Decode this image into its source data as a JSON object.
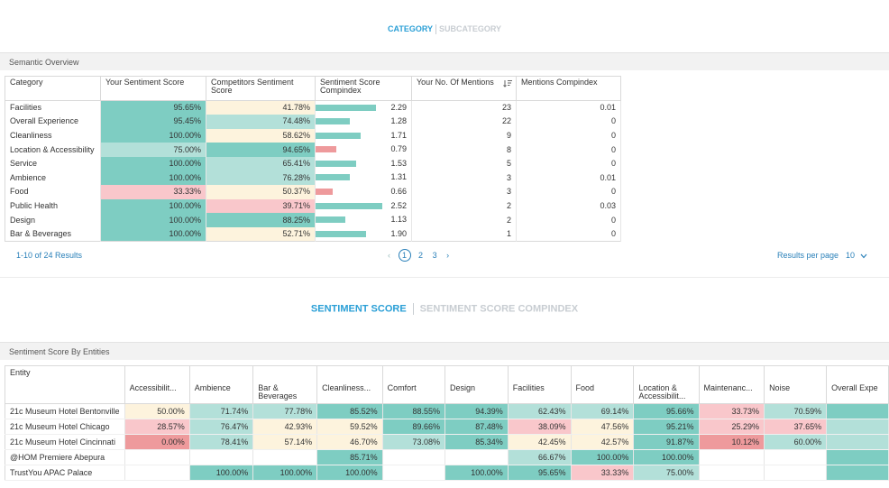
{
  "top_toggle": {
    "active": "CATEGORY",
    "inactive": "SUBCATEGORY"
  },
  "semantic": {
    "title": "Semantic Overview",
    "headers": {
      "category": "Category",
      "your_score": "Your Sentiment Score",
      "comp_score": "Competitors Sentiment Score",
      "compindex": "Sentiment Score Compindex",
      "mentions": "Your No. Of Mentions",
      "mentions_compindex": "Mentions Compindex"
    },
    "rows": [
      {
        "category": "Facilities",
        "your": "95.65%",
        "your_color": "#7ecdc2",
        "comp": "41.78%",
        "comp_color": "#fdf3dd",
        "ci": 2.29,
        "ci_label": "2.29",
        "mentions": "23",
        "mci": "0.01"
      },
      {
        "category": "Overall Experience",
        "your": "95.45%",
        "your_color": "#7ecdc2",
        "comp": "74.48%",
        "comp_color": "#b3e0d9",
        "ci": 1.28,
        "ci_label": "1.28",
        "mentions": "22",
        "mci": "0"
      },
      {
        "category": "Cleanliness",
        "your": "100.00%",
        "your_color": "#7ecdc2",
        "comp": "58.62%",
        "comp_color": "#fdf3dd",
        "ci": 1.71,
        "ci_label": "1.71",
        "mentions": "9",
        "mci": "0"
      },
      {
        "category": "Location & Accessibility",
        "your": "75.00%",
        "your_color": "#b3e0d9",
        "comp": "94.65%",
        "comp_color": "#7ecdc2",
        "ci": 0.79,
        "ci_label": "0.79",
        "mentions": "8",
        "mci": "0"
      },
      {
        "category": "Service",
        "your": "100.00%",
        "your_color": "#7ecdc2",
        "comp": "65.41%",
        "comp_color": "#b3e0d9",
        "ci": 1.53,
        "ci_label": "1.53",
        "mentions": "5",
        "mci": "0"
      },
      {
        "category": "Ambience",
        "your": "100.00%",
        "your_color": "#7ecdc2",
        "comp": "76.28%",
        "comp_color": "#b3e0d9",
        "ci": 1.31,
        "ci_label": "1.31",
        "mentions": "3",
        "mci": "0.01"
      },
      {
        "category": "Food",
        "your": "33.33%",
        "your_color": "#f9c7cb",
        "comp": "50.37%",
        "comp_color": "#fdf3dd",
        "ci": 0.66,
        "ci_label": "0.66",
        "mentions": "3",
        "mci": "0"
      },
      {
        "category": "Public Health",
        "your": "100.00%",
        "your_color": "#7ecdc2",
        "comp": "39.71%",
        "comp_color": "#f9c7cb",
        "ci": 2.52,
        "ci_label": "2.52",
        "mentions": "2",
        "mci": "0.03"
      },
      {
        "category": "Design",
        "your": "100.00%",
        "your_color": "#7ecdc2",
        "comp": "88.25%",
        "comp_color": "#7ecdc2",
        "ci": 1.13,
        "ci_label": "1.13",
        "mentions": "2",
        "mci": "0"
      },
      {
        "category": "Bar & Beverages",
        "your": "100.00%",
        "your_color": "#7ecdc2",
        "comp": "52.71%",
        "comp_color": "#fdf3dd",
        "ci": 1.9,
        "ci_label": "1.90",
        "mentions": "1",
        "mci": "0"
      }
    ],
    "ci_colors": {
      "above": "#7ecdc2",
      "below": "#ee9a9c"
    },
    "pagination": {
      "results": "1-10 of 24 Results",
      "prev": "‹",
      "pages": [
        "1",
        "2",
        "3"
      ],
      "next": "›",
      "per_page_label": "Results per page",
      "per_page_value": "10"
    }
  },
  "bottom_toggle": {
    "active": "SENTIMENT SCORE",
    "inactive": "SENTIMENT SCORE COMPINDEX"
  },
  "entities": {
    "title": "Sentiment Score By Entities",
    "entity_header": "Entity",
    "columns": [
      "Accessibilit...",
      "Ambience",
      "Bar & Beverages",
      "Cleanliness...",
      "Comfort",
      "Design",
      "Facilities",
      "Food",
      "Location & Accessibilit...",
      "Maintenanc...",
      "Noise",
      "Overall Expe"
    ],
    "rows": [
      {
        "name": "21c Museum Hotel Bentonville",
        "cells": [
          {
            "v": "50.00%",
            "c": "#fdf3dd"
          },
          {
            "v": "71.74%",
            "c": "#b3e0d9"
          },
          {
            "v": "77.78%",
            "c": "#b3e0d9"
          },
          {
            "v": "85.52%",
            "c": "#7ecdc2"
          },
          {
            "v": "88.55%",
            "c": "#7ecdc2"
          },
          {
            "v": "94.39%",
            "c": "#7ecdc2"
          },
          {
            "v": "62.43%",
            "c": "#b3e0d9"
          },
          {
            "v": "69.14%",
            "c": "#b3e0d9"
          },
          {
            "v": "95.66%",
            "c": "#7ecdc2"
          },
          {
            "v": "33.73%",
            "c": "#f9c7cb"
          },
          {
            "v": "70.59%",
            "c": "#b3e0d9"
          },
          {
            "v": "",
            "c": "#7ecdc2"
          }
        ]
      },
      {
        "name": "21c Museum Hotel Chicago",
        "cells": [
          {
            "v": "28.57%",
            "c": "#f9c7cb"
          },
          {
            "v": "76.47%",
            "c": "#b3e0d9"
          },
          {
            "v": "42.93%",
            "c": "#fdf3dd"
          },
          {
            "v": "59.52%",
            "c": "#fdf3dd"
          },
          {
            "v": "89.66%",
            "c": "#7ecdc2"
          },
          {
            "v": "87.48%",
            "c": "#7ecdc2"
          },
          {
            "v": "38.09%",
            "c": "#f9c7cb"
          },
          {
            "v": "47.56%",
            "c": "#fdf3dd"
          },
          {
            "v": "95.21%",
            "c": "#7ecdc2"
          },
          {
            "v": "25.29%",
            "c": "#f9c7cb"
          },
          {
            "v": "37.65%",
            "c": "#f9c7cb"
          },
          {
            "v": "",
            "c": "#b3e0d9"
          }
        ]
      },
      {
        "name": "21c Museum Hotel Cincinnati",
        "cells": [
          {
            "v": "0.00%",
            "c": "#ee9a9c"
          },
          {
            "v": "78.41%",
            "c": "#b3e0d9"
          },
          {
            "v": "57.14%",
            "c": "#fdf3dd"
          },
          {
            "v": "46.70%",
            "c": "#fdf3dd"
          },
          {
            "v": "73.08%",
            "c": "#b3e0d9"
          },
          {
            "v": "85.34%",
            "c": "#7ecdc2"
          },
          {
            "v": "42.45%",
            "c": "#fdf3dd"
          },
          {
            "v": "42.57%",
            "c": "#fdf3dd"
          },
          {
            "v": "91.87%",
            "c": "#7ecdc2"
          },
          {
            "v": "10.12%",
            "c": "#ee9a9c"
          },
          {
            "v": "60.00%",
            "c": "#b3e0d9"
          },
          {
            "v": "",
            "c": "#b3e0d9"
          }
        ]
      },
      {
        "name": "@HOM Premiere Abepura",
        "cells": [
          {
            "v": "",
            "c": "#ffffff"
          },
          {
            "v": "",
            "c": "#ffffff"
          },
          {
            "v": "",
            "c": "#ffffff"
          },
          {
            "v": "85.71%",
            "c": "#7ecdc2"
          },
          {
            "v": "",
            "c": "#ffffff"
          },
          {
            "v": "",
            "c": "#ffffff"
          },
          {
            "v": "66.67%",
            "c": "#b3e0d9"
          },
          {
            "v": "100.00%",
            "c": "#7ecdc2"
          },
          {
            "v": "100.00%",
            "c": "#7ecdc2"
          },
          {
            "v": "",
            "c": "#ffffff"
          },
          {
            "v": "",
            "c": "#ffffff"
          },
          {
            "v": "",
            "c": "#7ecdc2"
          }
        ]
      },
      {
        "name": "TrustYou APAC Palace",
        "cells": [
          {
            "v": "",
            "c": "#ffffff"
          },
          {
            "v": "100.00%",
            "c": "#7ecdc2"
          },
          {
            "v": "100.00%",
            "c": "#7ecdc2"
          },
          {
            "v": "100.00%",
            "c": "#7ecdc2"
          },
          {
            "v": "",
            "c": "#ffffff"
          },
          {
            "v": "100.00%",
            "c": "#7ecdc2"
          },
          {
            "v": "95.65%",
            "c": "#7ecdc2"
          },
          {
            "v": "33.33%",
            "c": "#f9c7cb"
          },
          {
            "v": "75.00%",
            "c": "#b3e0d9"
          },
          {
            "v": "",
            "c": "#ffffff"
          },
          {
            "v": "",
            "c": "#ffffff"
          },
          {
            "v": "",
            "c": "#7ecdc2"
          }
        ]
      }
    ]
  }
}
